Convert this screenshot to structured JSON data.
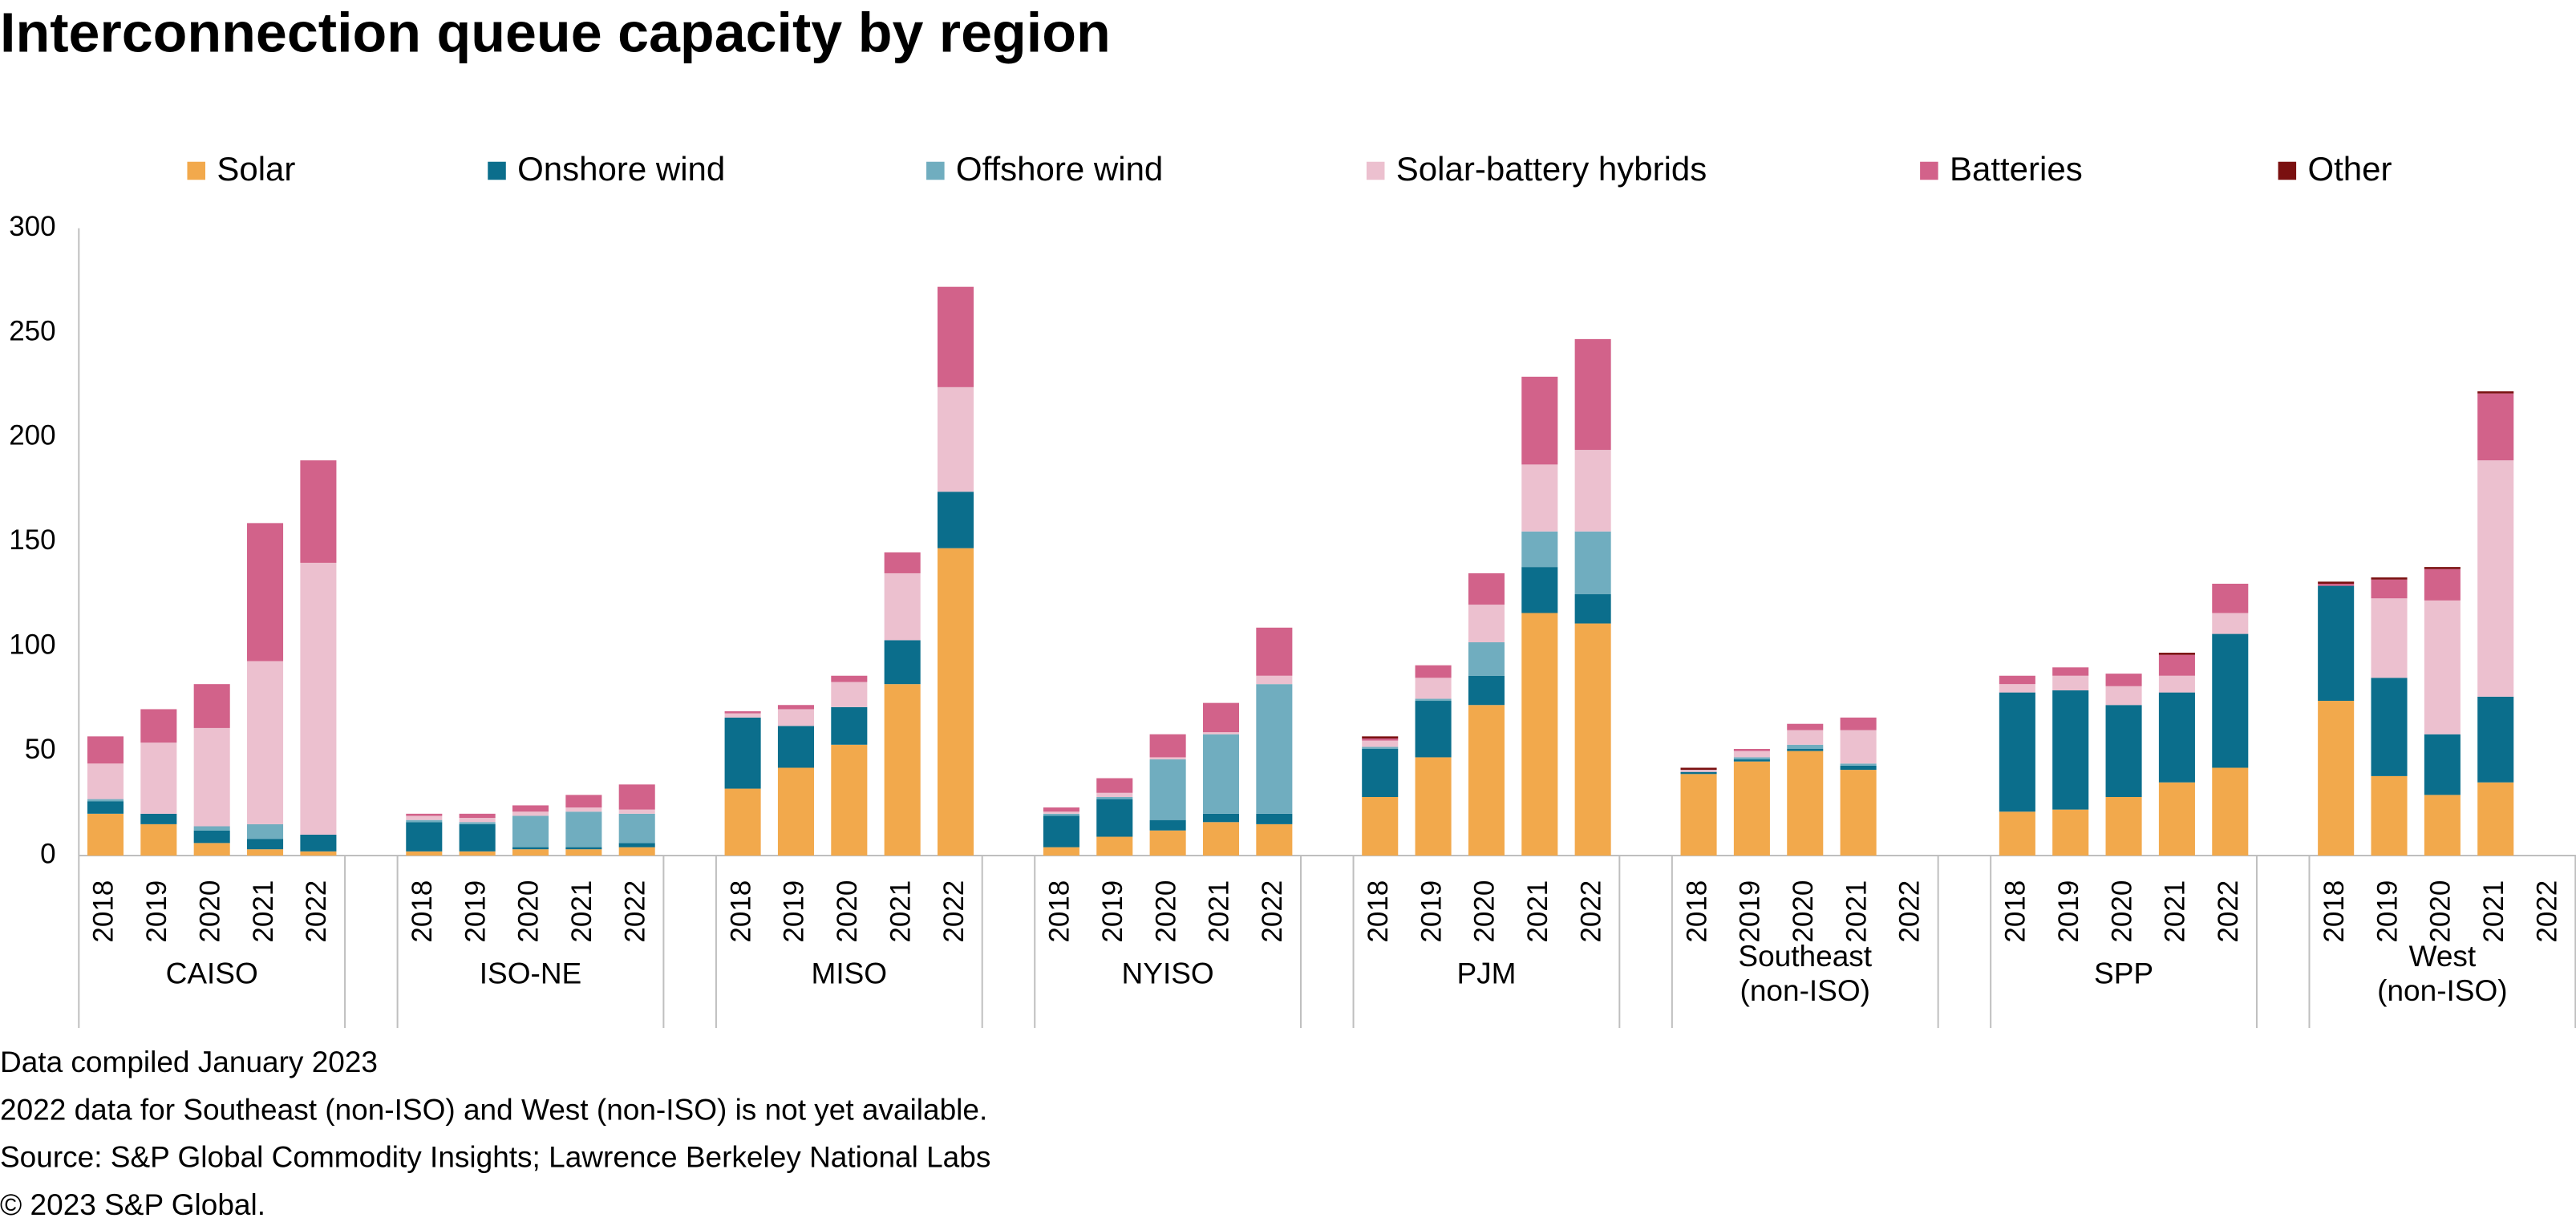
{
  "chart_data": {
    "type": "stacked-bar",
    "title": "Interconnection queue capacity by region",
    "groups": [
      [
        "CAISO"
      ],
      [
        "ISO-NE"
      ],
      [
        "MISO"
      ],
      [
        "NYISO"
      ],
      [
        "PJM"
      ],
      [
        "Southeast",
        "(non-ISO)"
      ],
      [
        "SPP"
      ],
      [
        "West",
        "(non-ISO)"
      ]
    ],
    "categories": [
      "2018",
      "2019",
      "2020",
      "2021",
      "2022",
      "2018",
      "2019",
      "2020",
      "2021",
      "2022",
      "2018",
      "2019",
      "2020",
      "2021",
      "2022",
      "2018",
      "2019",
      "2020",
      "2021",
      "2022",
      "2018",
      "2019",
      "2020",
      "2021",
      "2022",
      "2018",
      "2019",
      "2020",
      "2021",
      "2022",
      "2018",
      "2019",
      "2020",
      "2021",
      "2022",
      "2018",
      "2019",
      "2020",
      "2021",
      "2022"
    ],
    "series": [
      {
        "name": "Solar",
        "color": "#f2a94c",
        "values": [
          20,
          15,
          6,
          3,
          2,
          2,
          2,
          3,
          3,
          4,
          32,
          42,
          53,
          82,
          147,
          4,
          9,
          12,
          16,
          15,
          28,
          47,
          72,
          116,
          111,
          39,
          45,
          50,
          41,
          null,
          21,
          22,
          28,
          35,
          42,
          74,
          38,
          29,
          35,
          null
        ]
      },
      {
        "name": "Onshore wind",
        "color": "#0b6e8c",
        "values": [
          6,
          5,
          6,
          5,
          8,
          14,
          13,
          1,
          1,
          2,
          34,
          20,
          18,
          21,
          27,
          15,
          18,
          5,
          4,
          5,
          23,
          27,
          14,
          22,
          14,
          1,
          1,
          1,
          2,
          null,
          57,
          57,
          44,
          43,
          64,
          55,
          47,
          29,
          41,
          null
        ]
      },
      {
        "name": "Offshore wind",
        "color": "#70adbf",
        "values": [
          1,
          0,
          2,
          7,
          0,
          1,
          1,
          15,
          17,
          14,
          0,
          0,
          0,
          0,
          0,
          1,
          1,
          29,
          38,
          62,
          1,
          1,
          16,
          17,
          30,
          0,
          1,
          2,
          1,
          null,
          0,
          0,
          0,
          0,
          0,
          0,
          0,
          0,
          0,
          null
        ]
      },
      {
        "name": "Solar-battery hybrids",
        "color": "#ecc0cf",
        "values": [
          17,
          34,
          47,
          78,
          130,
          2,
          2,
          2,
          2,
          2,
          2,
          8,
          12,
          32,
          50,
          1,
          2,
          1,
          1,
          4,
          3,
          10,
          18,
          32,
          39,
          1,
          3,
          7,
          16,
          null,
          4,
          7,
          9,
          8,
          10,
          0,
          38,
          64,
          113,
          null
        ]
      },
      {
        "name": "Batteries",
        "color": "#d2628a",
        "values": [
          13,
          16,
          21,
          66,
          49,
          1,
          2,
          3,
          6,
          12,
          1,
          2,
          3,
          10,
          48,
          2,
          7,
          11,
          14,
          23,
          1,
          6,
          15,
          42,
          53,
          0,
          1,
          3,
          6,
          null,
          4,
          4,
          6,
          10,
          14,
          1,
          9,
          15,
          32,
          null
        ]
      },
      {
        "name": "Other",
        "color": "#7a1010",
        "values": [
          0,
          0,
          0,
          0,
          0,
          0,
          0,
          0,
          0,
          0,
          0,
          0,
          0,
          0,
          0,
          0,
          0,
          0,
          0,
          0,
          1,
          0,
          0,
          0,
          0,
          1,
          0,
          0,
          0,
          null,
          0,
          0,
          0,
          1,
          0,
          1,
          1,
          1,
          1,
          null
        ]
      }
    ],
    "ylim": [
      0,
      300
    ],
    "yticks": [
      0,
      50,
      100,
      150,
      200,
      250,
      300
    ],
    "grid": false,
    "legend": "top",
    "footnotes": [
      "Data compiled January 2023",
      "2022 data for Southeast (non-ISO) and West (non-ISO) is not yet available.",
      "Source: S&P Global Commodity Insights; Lawrence Berkeley National Labs",
      "© 2023 S&P Global."
    ]
  }
}
